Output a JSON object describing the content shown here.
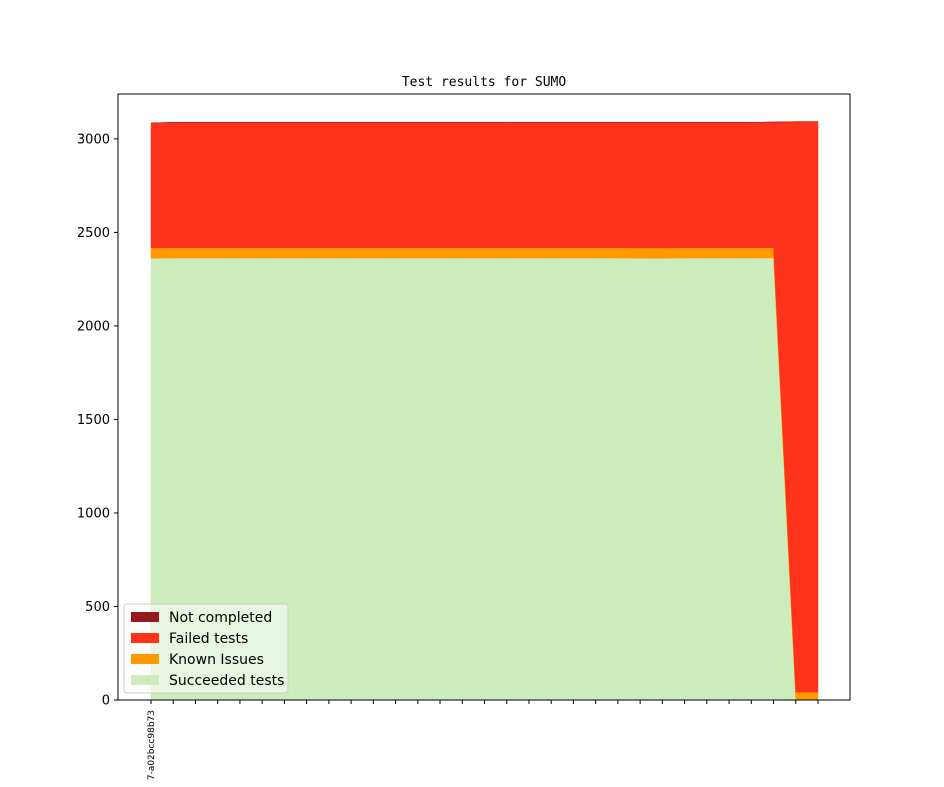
{
  "chart_data": {
    "type": "area",
    "stacked": true,
    "title": "Test results for SUMO",
    "xlabel": "",
    "ylabel": "",
    "ylim": [
      0,
      3240
    ],
    "yticks": [
      0,
      500,
      1000,
      1500,
      2000,
      2500,
      3000
    ],
    "x_count": 31,
    "x_tick_labels": [
      "7-a02bcc98b73"
    ],
    "legend_position": "lower-left",
    "grid": false,
    "series": [
      {
        "name": "Succeeded tests",
        "color": "#cdecbc",
        "values": [
          2362,
          2363,
          2363,
          2363,
          2363,
          2363,
          2363,
          2363,
          2363,
          2363,
          2363,
          2363,
          2363,
          2363,
          2363,
          2363,
          2363,
          2363,
          2363,
          2363,
          2363,
          2363,
          2362,
          2362,
          2363,
          2363,
          2363,
          2363,
          2363,
          0,
          0
        ]
      },
      {
        "name": "Known Issues",
        "color": "#ff9900",
        "values": [
          55,
          55,
          55,
          55,
          55,
          55,
          55,
          55,
          55,
          55,
          55,
          55,
          55,
          55,
          55,
          55,
          55,
          55,
          55,
          55,
          55,
          55,
          55,
          55,
          55,
          55,
          55,
          55,
          55,
          42,
          42
        ]
      },
      {
        "name": "Failed tests",
        "color": "#ff331b",
        "values": [
          668,
          670,
          670,
          670,
          670,
          670,
          670,
          670,
          670,
          670,
          670,
          670,
          670,
          670,
          670,
          670,
          670,
          670,
          670,
          670,
          670,
          670,
          671,
          671,
          670,
          670,
          670,
          670,
          672,
          3050,
          3050
        ]
      },
      {
        "name": "Not completed",
        "color": "#941a1d",
        "values": [
          0,
          0,
          0,
          0,
          0,
          0,
          0,
          0,
          0,
          0,
          0,
          0,
          0,
          0,
          0,
          0,
          0,
          0,
          0,
          0,
          0,
          0,
          0,
          0,
          0,
          0,
          0,
          0,
          0,
          0,
          0
        ]
      }
    ]
  }
}
